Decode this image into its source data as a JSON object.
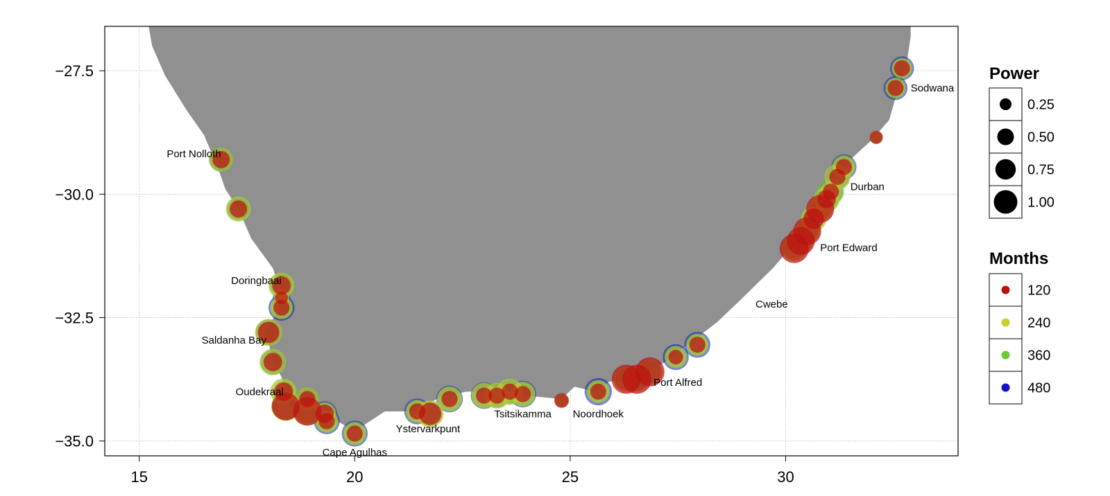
{
  "chart_data": {
    "type": "scatter",
    "title": "",
    "xlabel": "",
    "ylabel": "",
    "xlim": [
      14.2,
      34.0
    ],
    "ylim": [
      -35.3,
      -26.6
    ],
    "x_ticks": [
      15,
      20,
      25,
      30
    ],
    "x_tick_labels": [
      "15",
      "20",
      "25",
      "30"
    ],
    "y_ticks": [
      -27.5,
      -30.0,
      -32.5,
      -35.0
    ],
    "y_tick_labels": [
      "−27.5",
      "−30.0",
      "−32.5",
      "−35.0"
    ],
    "grid": true,
    "land_color": "#909090",
    "land_outline": [
      [
        15.0,
        -26.0
      ],
      [
        33.0,
        -26.0
      ],
      [
        32.9,
        -26.1
      ],
      [
        32.9,
        -26.8
      ],
      [
        32.8,
        -27.4
      ],
      [
        32.6,
        -27.9
      ],
      [
        32.4,
        -28.5
      ],
      [
        32.0,
        -28.9
      ],
      [
        31.5,
        -29.3
      ],
      [
        31.0,
        -29.9
      ],
      [
        30.6,
        -30.5
      ],
      [
        30.2,
        -31.0
      ],
      [
        29.7,
        -31.5
      ],
      [
        29.0,
        -32.1
      ],
      [
        28.4,
        -32.6
      ],
      [
        27.8,
        -33.0
      ],
      [
        27.2,
        -33.4
      ],
      [
        26.6,
        -33.7
      ],
      [
        25.9,
        -33.8
      ],
      [
        25.6,
        -34.0
      ],
      [
        25.1,
        -33.9
      ],
      [
        24.8,
        -34.15
      ],
      [
        24.2,
        -34.1
      ],
      [
        23.4,
        -34.0
      ],
      [
        22.6,
        -34.0
      ],
      [
        22.0,
        -34.1
      ],
      [
        21.4,
        -34.4
      ],
      [
        20.7,
        -34.4
      ],
      [
        20.0,
        -34.8
      ],
      [
        19.6,
        -34.6
      ],
      [
        19.2,
        -34.4
      ],
      [
        18.8,
        -34.2
      ],
      [
        18.5,
        -34.3
      ],
      [
        18.4,
        -34.0
      ],
      [
        18.3,
        -33.7
      ],
      [
        18.1,
        -33.4
      ],
      [
        18.0,
        -33.0
      ],
      [
        17.9,
        -32.8
      ],
      [
        18.2,
        -32.4
      ],
      [
        18.3,
        -32.0
      ],
      [
        18.1,
        -31.5
      ],
      [
        17.6,
        -30.9
      ],
      [
        17.3,
        -30.3
      ],
      [
        17.0,
        -29.9
      ],
      [
        16.8,
        -29.4
      ],
      [
        16.5,
        -28.8
      ],
      [
        16.1,
        -28.3
      ],
      [
        15.6,
        -27.6
      ],
      [
        15.3,
        -27.0
      ],
      [
        15.2,
        -26.5
      ],
      [
        15.0,
        -26.4
      ]
    ],
    "place_labels": [
      {
        "name": "Port Nolloth",
        "x": 16.9,
        "y": -29.25,
        "anchor": "end"
      },
      {
        "name": "Doringbaai",
        "x": 18.3,
        "y": -31.82,
        "anchor": "end"
      },
      {
        "name": "Saldanha Bay",
        "x": 17.95,
        "y": -33.03,
        "anchor": "end"
      },
      {
        "name": "Oudekraal",
        "x": 18.35,
        "y": -34.07,
        "anchor": "end"
      },
      {
        "name": "Cape Agulhas",
        "x": 20.0,
        "y": -35.3,
        "anchor": "middle"
      },
      {
        "name": "Ystervarkpunt",
        "x": 21.7,
        "y": -34.82,
        "anchor": "middle"
      },
      {
        "name": "Tsitsikamma",
        "x": 23.9,
        "y": -34.52,
        "anchor": "middle"
      },
      {
        "name": "Noordhoek",
        "x": 25.65,
        "y": -34.52,
        "anchor": "middle"
      },
      {
        "name": "Port Alfred",
        "x": 27.5,
        "y": -33.88,
        "anchor": "middle"
      },
      {
        "name": "Cwebe",
        "x": 29.3,
        "y": -32.3,
        "anchor": "start"
      },
      {
        "name": "Port Edward",
        "x": 30.8,
        "y": -31.15,
        "anchor": "start"
      },
      {
        "name": "Durban",
        "x": 31.5,
        "y": -29.92,
        "anchor": "start"
      },
      {
        "name": "Sodwana",
        "x": 32.9,
        "y": -27.92,
        "anchor": "start"
      }
    ],
    "series": [
      {
        "name": "120",
        "color": "#bb1111"
      },
      {
        "name": "240",
        "color": "#cccc33"
      },
      {
        "name": "360",
        "color": "#66cc33"
      },
      {
        "name": "480",
        "color": "#1111cc"
      }
    ],
    "sites": [
      {
        "x": 16.9,
        "y": -29.3,
        "power": [
          0.25,
          0.6,
          0.65,
          0.6
        ]
      },
      {
        "x": 17.3,
        "y": -30.3,
        "power": [
          0.25,
          0.65,
          0.7,
          0.5
        ]
      },
      {
        "x": 18.3,
        "y": -31.85,
        "power": [
          0.3,
          0.7,
          0.75,
          0.5
        ]
      },
      {
        "x": 18.3,
        "y": -32.1,
        "power": [
          0.1,
          0.15,
          0.2,
          0.25
        ]
      },
      {
        "x": 18.3,
        "y": -32.3,
        "power": [
          0.2,
          0.5,
          0.55,
          0.75
        ]
      },
      {
        "x": 18.0,
        "y": -32.8,
        "power": [
          0.45,
          0.85,
          0.75,
          0.75
        ]
      },
      {
        "x": 18.1,
        "y": -33.4,
        "power": [
          0.3,
          0.75,
          0.8,
          0.65
        ]
      },
      {
        "x": 18.35,
        "y": -34.0,
        "power": [
          0.3,
          0.7,
          0.8,
          0.4
        ]
      },
      {
        "x": 18.4,
        "y": -34.3,
        "power": [
          0.9,
          1.0,
          0.95,
          0.8
        ]
      },
      {
        "x": 18.9,
        "y": -34.15,
        "power": [
          0.2,
          0.6,
          0.6,
          0.6
        ]
      },
      {
        "x": 18.9,
        "y": -34.4,
        "power": [
          0.95,
          0.9,
          0.9,
          0.6
        ]
      },
      {
        "x": 19.3,
        "y": -34.45,
        "power": [
          0.3,
          0.5,
          0.6,
          0.7
        ]
      },
      {
        "x": 19.35,
        "y": -34.6,
        "power": [
          0.2,
          0.5,
          0.6,
          0.75
        ]
      },
      {
        "x": 20.0,
        "y": -34.85,
        "power": [
          0.2,
          0.5,
          0.6,
          0.75
        ]
      },
      {
        "x": 21.45,
        "y": -34.4,
        "power": [
          0.2,
          0.5,
          0.6,
          0.75
        ]
      },
      {
        "x": 21.75,
        "y": -34.45,
        "power": [
          0.5,
          0.85,
          0.75,
          0.6
        ]
      },
      {
        "x": 22.2,
        "y": -34.15,
        "power": [
          0.2,
          0.65,
          0.7,
          0.8
        ]
      },
      {
        "x": 23.0,
        "y": -34.08,
        "power": [
          0.2,
          0.7,
          0.75,
          0.8
        ]
      },
      {
        "x": 23.3,
        "y": -34.08,
        "power": [
          0.2,
          0.7,
          0.75,
          0.6
        ]
      },
      {
        "x": 23.6,
        "y": -34.0,
        "power": [
          0.2,
          0.75,
          0.8,
          0.6
        ]
      },
      {
        "x": 23.9,
        "y": -34.05,
        "power": [
          0.2,
          0.65,
          0.7,
          0.8
        ]
      },
      {
        "x": 24.8,
        "y": -34.18,
        "power": [
          0.15,
          0.1,
          0.1,
          0.1
        ]
      },
      {
        "x": 25.65,
        "y": -34.0,
        "power": [
          0.2,
          0.5,
          0.6,
          0.85
        ]
      },
      {
        "x": 26.3,
        "y": -33.75,
        "power": [
          1.0,
          0.7,
          0.6,
          0.5
        ]
      },
      {
        "x": 26.55,
        "y": -33.75,
        "power": [
          1.0,
          0.7,
          0.6,
          0.5
        ]
      },
      {
        "x": 26.85,
        "y": -33.6,
        "power": [
          1.0,
          0.7,
          0.6,
          0.5
        ]
      },
      {
        "x": 27.45,
        "y": -33.3,
        "power": [
          0.15,
          0.45,
          0.55,
          0.75
        ]
      },
      {
        "x": 27.95,
        "y": -33.05,
        "power": [
          0.2,
          0.45,
          0.55,
          0.75
        ]
      },
      {
        "x": 30.2,
        "y": -31.1,
        "power": [
          1.0,
          0.7,
          0.6,
          0.4
        ]
      },
      {
        "x": 30.35,
        "y": -30.95,
        "power": [
          0.9,
          0.7,
          0.6,
          0.4
        ]
      },
      {
        "x": 30.5,
        "y": -30.75,
        "power": [
          0.9,
          0.7,
          0.6,
          0.4
        ]
      },
      {
        "x": 30.65,
        "y": -30.5,
        "power": [
          0.4,
          0.7,
          0.7,
          0.4
        ]
      },
      {
        "x": 30.8,
        "y": -30.3,
        "power": [
          0.9,
          0.8,
          0.6,
          0.4
        ]
      },
      {
        "x": 30.95,
        "y": -30.1,
        "power": [
          0.3,
          0.7,
          0.75,
          0.6
        ]
      },
      {
        "x": 31.05,
        "y": -29.95,
        "power": [
          0.2,
          0.5,
          0.8,
          0.6
        ]
      },
      {
        "x": 31.2,
        "y": -29.65,
        "power": [
          0.2,
          0.75,
          0.7,
          0.6
        ]
      },
      {
        "x": 31.35,
        "y": -29.45,
        "power": [
          0.2,
          0.5,
          0.6,
          0.7
        ]
      },
      {
        "x": 32.1,
        "y": -28.85,
        "power": [
          0.1,
          0.1,
          0.1,
          0.1
        ]
      },
      {
        "x": 32.55,
        "y": -27.85,
        "power": [
          0.2,
          0.35,
          0.45,
          0.6
        ]
      },
      {
        "x": 32.7,
        "y": -27.45,
        "power": [
          0.2,
          0.35,
          0.45,
          0.6
        ]
      }
    ],
    "legend_power": {
      "title": "Power",
      "values": [
        0.25,
        0.5,
        0.75,
        1.0
      ],
      "labels": [
        "0.25",
        "0.50",
        "0.75",
        "1.00"
      ]
    },
    "legend_months": {
      "title": "Months",
      "labels": [
        "120",
        "240",
        "360",
        "480"
      ],
      "colors": [
        "#bb1111",
        "#cccc33",
        "#66cc33",
        "#1111cc"
      ]
    }
  }
}
